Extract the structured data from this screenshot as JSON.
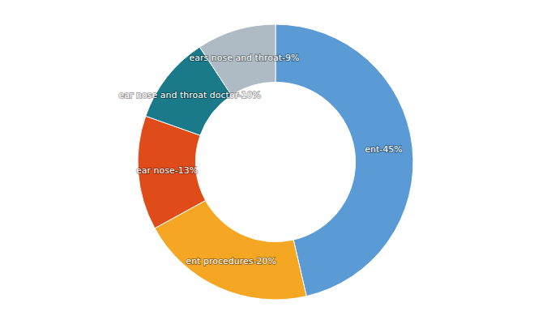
{
  "chart_data": {
    "type": "pie",
    "values": [
      45,
      20,
      13,
      10,
      9
    ],
    "value_labels": [
      "ent-45%",
      "ent procedures-20%",
      "ear nose-13%",
      "ear nose and throat doctor-10%",
      "ears nose and throat-9%"
    ],
    "colors": [
      "#5B9BD5",
      "#F5A623",
      "#E04B1A",
      "#1A7A8A",
      "#AEBAC4"
    ],
    "data_labels": true
  }
}
